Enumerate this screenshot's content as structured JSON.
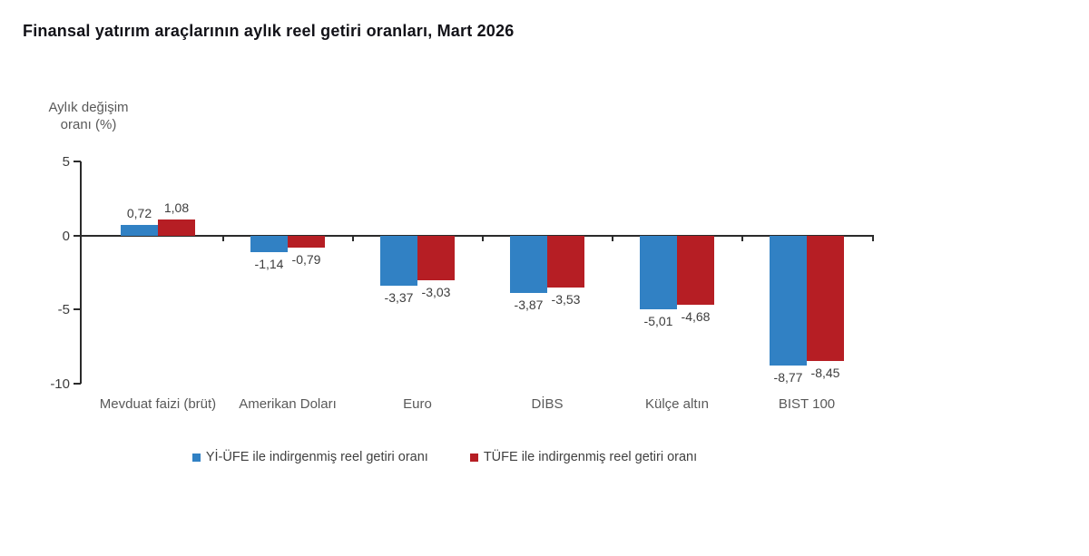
{
  "title": "Finansal yatırım araçlarının aylık reel getiri oranları, Mart 2026",
  "chart_data": {
    "type": "bar",
    "title": "Finansal yatırım araçlarının aylık reel getiri oranları, Mart 2026",
    "ylabel": "Aylık değişim\noranı (%)",
    "xlabel": "",
    "categories": [
      "Mevduat faizi (brüt)",
      "Amerikan Doları",
      "Euro",
      "DİBS",
      "Külçe altın",
      "BIST 100"
    ],
    "series": [
      {
        "name": "Yİ-ÜFE ile indirgenmiş reel getiri oranı",
        "color": "#3181C4",
        "values": [
          0.72,
          -1.14,
          -3.37,
          -3.87,
          -5.01,
          -8.77
        ],
        "labels": [
          "0,72",
          "-1,14",
          "-3,37",
          "-3,87",
          "-5,01",
          "-8,77"
        ]
      },
      {
        "name": "TÜFE ile indirgenmiş reel getiri oranı",
        "color": "#B61E24",
        "values": [
          1.08,
          -0.79,
          -3.03,
          -3.53,
          -4.68,
          -8.45
        ],
        "labels": [
          "1,08",
          "-0,79",
          "-3,03",
          "-3,53",
          "-4,68",
          "-8,45"
        ]
      }
    ],
    "yticks": [
      {
        "value": 5,
        "label": "5"
      },
      {
        "value": 0,
        "label": "0"
      },
      {
        "value": -5,
        "label": "-5"
      },
      {
        "value": -10,
        "label": "-10"
      }
    ],
    "ylim": [
      -10,
      5
    ],
    "grid": false,
    "legend_position": "bottom"
  },
  "colors": {
    "axis": "#2b2b2b",
    "value_label_text": "#3d3d3d",
    "category_label_text": "#595959",
    "title_text": "#121218"
  }
}
